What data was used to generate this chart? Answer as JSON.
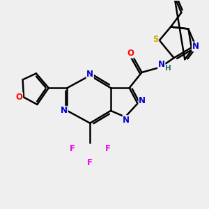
{
  "bg_color": "#efefef",
  "atom_colors": {
    "C": "#000000",
    "N": "#0000cc",
    "O": "#ff0000",
    "S": "#ccaa00",
    "F": "#ee00ee",
    "H": "#336666"
  },
  "bond_color": "#000000",
  "bond_width": 1.8,
  "figsize": [
    3.0,
    3.0
  ],
  "dpi": 100
}
